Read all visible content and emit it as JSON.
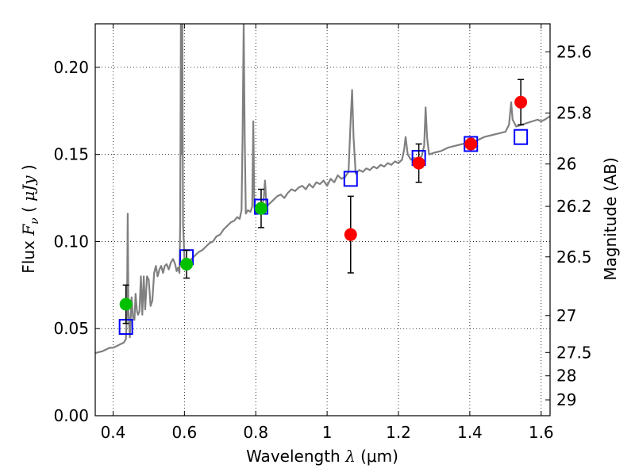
{
  "chart_data": {
    "type": "scatter",
    "xlabel": "Wavelength  λ (μm)",
    "ylabel": "Flux  F_ν  ( μJy )",
    "ylabel_parts": {
      "prefix": "Flux",
      "symbol": "F",
      "subscript": "ν",
      "unit_open": "(",
      "unit": "μJy",
      "unit_close": ")"
    },
    "xlabel_parts": {
      "text": "Wavelength",
      "symbol": "λ",
      "unit": "(μm)"
    },
    "y2label": "Magnitude (AB)",
    "xlim": [
      0.35,
      1.625
    ],
    "ylim": [
      0.0,
      0.225
    ],
    "grid": true,
    "x_ticks": [
      0.4,
      0.6,
      0.8,
      1.0,
      1.2,
      1.4,
      1.6
    ],
    "x_tick_labels": [
      "0.4",
      "0.6",
      "0.8",
      "1",
      "1.2",
      "1.4",
      "1.6"
    ],
    "y_ticks": [
      0.0,
      0.05,
      0.1,
      0.15,
      0.2
    ],
    "y_tick_labels": [
      "0.00",
      "0.05",
      "0.10",
      "0.15",
      "0.20"
    ],
    "y2_ticks": [
      {
        "label": "25.6",
        "flux": 0.2089
      },
      {
        "label": "25.8",
        "flux": 0.1738
      },
      {
        "label": "26",
        "flux": 0.1445
      },
      {
        "label": "26.2",
        "flux": 0.1202
      },
      {
        "label": "26.5",
        "flux": 0.0912
      },
      {
        "label": "27",
        "flux": 0.0575
      },
      {
        "label": "27.5",
        "flux": 0.0363
      },
      {
        "label": "28",
        "flux": 0.0229
      },
      {
        "label": "29",
        "flux": 0.0091
      }
    ],
    "series": [
      {
        "kind": "line",
        "color": "#808080",
        "points": [
          [
            0.35,
            0.036
          ],
          [
            0.37,
            0.037
          ],
          [
            0.38,
            0.038
          ],
          [
            0.39,
            0.039
          ],
          [
            0.4,
            0.039
          ],
          [
            0.41,
            0.04
          ],
          [
            0.42,
            0.041
          ],
          [
            0.43,
            0.042
          ],
          [
            0.436,
            0.044
          ],
          [
            0.439,
            0.06
          ],
          [
            0.441,
            0.116
          ],
          [
            0.443,
            0.06
          ],
          [
            0.447,
            0.045
          ],
          [
            0.452,
            0.068
          ],
          [
            0.456,
            0.056
          ],
          [
            0.46,
            0.055
          ],
          [
            0.463,
            0.07
          ],
          [
            0.467,
            0.06
          ],
          [
            0.47,
            0.058
          ],
          [
            0.474,
            0.06
          ],
          [
            0.478,
            0.08
          ],
          [
            0.482,
            0.058
          ],
          [
            0.486,
            0.08
          ],
          [
            0.49,
            0.061
          ],
          [
            0.495,
            0.08
          ],
          [
            0.5,
            0.078
          ],
          [
            0.505,
            0.063
          ],
          [
            0.51,
            0.066
          ],
          [
            0.515,
            0.082
          ],
          [
            0.52,
            0.086
          ],
          [
            0.525,
            0.08
          ],
          [
            0.53,
            0.084
          ],
          [
            0.535,
            0.086
          ],
          [
            0.54,
            0.082
          ],
          [
            0.545,
            0.086
          ],
          [
            0.55,
            0.087
          ],
          [
            0.556,
            0.084
          ],
          [
            0.562,
            0.088
          ],
          [
            0.568,
            0.09
          ],
          [
            0.574,
            0.087
          ],
          [
            0.578,
            0.083
          ],
          [
            0.582,
            0.085
          ],
          [
            0.586,
            0.082
          ],
          [
            0.588,
            0.11
          ],
          [
            0.59,
            0.225
          ],
          [
            0.592,
            0.15
          ],
          [
            0.594,
            0.225
          ],
          [
            0.596,
            0.11
          ],
          [
            0.6,
            0.09
          ],
          [
            0.604,
            0.088
          ],
          [
            0.61,
            0.084
          ],
          [
            0.62,
            0.09
          ],
          [
            0.63,
            0.092
          ],
          [
            0.64,
            0.094
          ],
          [
            0.65,
            0.095
          ],
          [
            0.66,
            0.097
          ],
          [
            0.67,
            0.099
          ],
          [
            0.68,
            0.1
          ],
          [
            0.69,
            0.103
          ],
          [
            0.7,
            0.104
          ],
          [
            0.71,
            0.107
          ],
          [
            0.72,
            0.109
          ],
          [
            0.73,
            0.111
          ],
          [
            0.74,
            0.112
          ],
          [
            0.748,
            0.114
          ],
          [
            0.755,
            0.113
          ],
          [
            0.76,
            0.118
          ],
          [
            0.763,
            0.16
          ],
          [
            0.766,
            0.225
          ],
          [
            0.769,
            0.16
          ],
          [
            0.772,
            0.116
          ],
          [
            0.778,
            0.118
          ],
          [
            0.785,
            0.117
          ],
          [
            0.79,
            0.12
          ],
          [
            0.793,
            0.169
          ],
          [
            0.796,
            0.12
          ],
          [
            0.8,
            0.116
          ],
          [
            0.808,
            0.122
          ],
          [
            0.815,
            0.119
          ],
          [
            0.822,
            0.124
          ],
          [
            0.826,
            0.135
          ],
          [
            0.83,
            0.12
          ],
          [
            0.84,
            0.122
          ],
          [
            0.85,
            0.124
          ],
          [
            0.86,
            0.126
          ],
          [
            0.87,
            0.127
          ],
          [
            0.88,
            0.125
          ],
          [
            0.89,
            0.128
          ],
          [
            0.9,
            0.13
          ],
          [
            0.91,
            0.129
          ],
          [
            0.92,
            0.131
          ],
          [
            0.93,
            0.132
          ],
          [
            0.94,
            0.13
          ],
          [
            0.95,
            0.133
          ],
          [
            0.96,
            0.131
          ],
          [
            0.97,
            0.134
          ],
          [
            0.98,
            0.133
          ],
          [
            0.99,
            0.135
          ],
          [
            1.0,
            0.132
          ],
          [
            1.01,
            0.136
          ],
          [
            1.02,
            0.134
          ],
          [
            1.03,
            0.138
          ],
          [
            1.04,
            0.136
          ],
          [
            1.05,
            0.137
          ],
          [
            1.06,
            0.14
          ],
          [
            1.066,
            0.17
          ],
          [
            1.07,
            0.187
          ],
          [
            1.074,
            0.16
          ],
          [
            1.08,
            0.139
          ],
          [
            1.09,
            0.141
          ],
          [
            1.1,
            0.14
          ],
          [
            1.11,
            0.142
          ],
          [
            1.12,
            0.141
          ],
          [
            1.13,
            0.143
          ],
          [
            1.14,
            0.142
          ],
          [
            1.15,
            0.144
          ],
          [
            1.16,
            0.143
          ],
          [
            1.17,
            0.145
          ],
          [
            1.18,
            0.144
          ],
          [
            1.19,
            0.146
          ],
          [
            1.2,
            0.145
          ],
          [
            1.21,
            0.147
          ],
          [
            1.216,
            0.153
          ],
          [
            1.22,
            0.16
          ],
          [
            1.226,
            0.15
          ],
          [
            1.235,
            0.147
          ],
          [
            1.245,
            0.148
          ],
          [
            1.255,
            0.147
          ],
          [
            1.265,
            0.149
          ],
          [
            1.272,
            0.155
          ],
          [
            1.276,
            0.177
          ],
          [
            1.28,
            0.16
          ],
          [
            1.286,
            0.15
          ],
          [
            1.3,
            0.151
          ],
          [
            1.32,
            0.152
          ],
          [
            1.34,
            0.154
          ],
          [
            1.36,
            0.155
          ],
          [
            1.38,
            0.156
          ],
          [
            1.4,
            0.157
          ],
          [
            1.42,
            0.158
          ],
          [
            1.44,
            0.16
          ],
          [
            1.46,
            0.161
          ],
          [
            1.48,
            0.162
          ],
          [
            1.5,
            0.163
          ],
          [
            1.51,
            0.167
          ],
          [
            1.516,
            0.18
          ],
          [
            1.52,
            0.17
          ],
          [
            1.53,
            0.166
          ],
          [
            1.545,
            0.167
          ],
          [
            1.56,
            0.168
          ],
          [
            1.575,
            0.169
          ],
          [
            1.59,
            0.17
          ],
          [
            1.6,
            0.169
          ],
          [
            1.61,
            0.17
          ],
          [
            1.625,
            0.172
          ]
        ]
      },
      {
        "kind": "markers",
        "marker": "open-square",
        "color": "#0000ff",
        "points": [
          [
            0.436,
            0.051
          ],
          [
            0.606,
            0.091
          ],
          [
            0.815,
            0.12
          ],
          [
            1.066,
            0.136
          ],
          [
            1.257,
            0.148
          ],
          [
            1.403,
            0.156
          ],
          [
            1.543,
            0.16
          ]
        ]
      },
      {
        "kind": "markers",
        "marker": "filled-circle",
        "color": "#00c000",
        "points": [
          {
            "x": 0.436,
            "y": 0.064,
            "yerr": 0.011
          },
          {
            "x": 0.606,
            "y": 0.087,
            "yerr": 0.008
          },
          {
            "x": 0.815,
            "y": 0.119,
            "yerr": 0.011
          }
        ]
      },
      {
        "kind": "markers",
        "marker": "filled-circle",
        "color": "#ff0000",
        "points": [
          {
            "x": 1.066,
            "y": 0.104,
            "yerr": 0.022
          },
          {
            "x": 1.257,
            "y": 0.145,
            "yerr": 0.011
          },
          {
            "x": 1.403,
            "y": 0.156,
            "yerr": 0.003
          },
          {
            "x": 1.543,
            "y": 0.18,
            "yerr": 0.013
          }
        ]
      }
    ]
  }
}
